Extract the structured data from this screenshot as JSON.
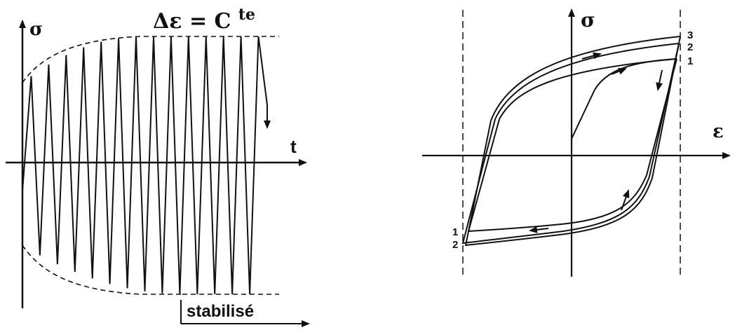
{
  "left_panel": {
    "y_axis_label": "σ",
    "x_axis_label": "t",
    "title": "Δε = C",
    "title_superscript": "te",
    "stabilized_label": "stabilisé",
    "cycles": 14
  },
  "right_panel": {
    "y_axis_label": "σ",
    "x_axis_label": "ε",
    "cycle_labels_top": [
      "3",
      "2",
      "1"
    ],
    "cycle_labels_bottom": [
      "1",
      "2"
    ]
  },
  "colors": {
    "ink": "#111111",
    "background": "#ffffff"
  }
}
